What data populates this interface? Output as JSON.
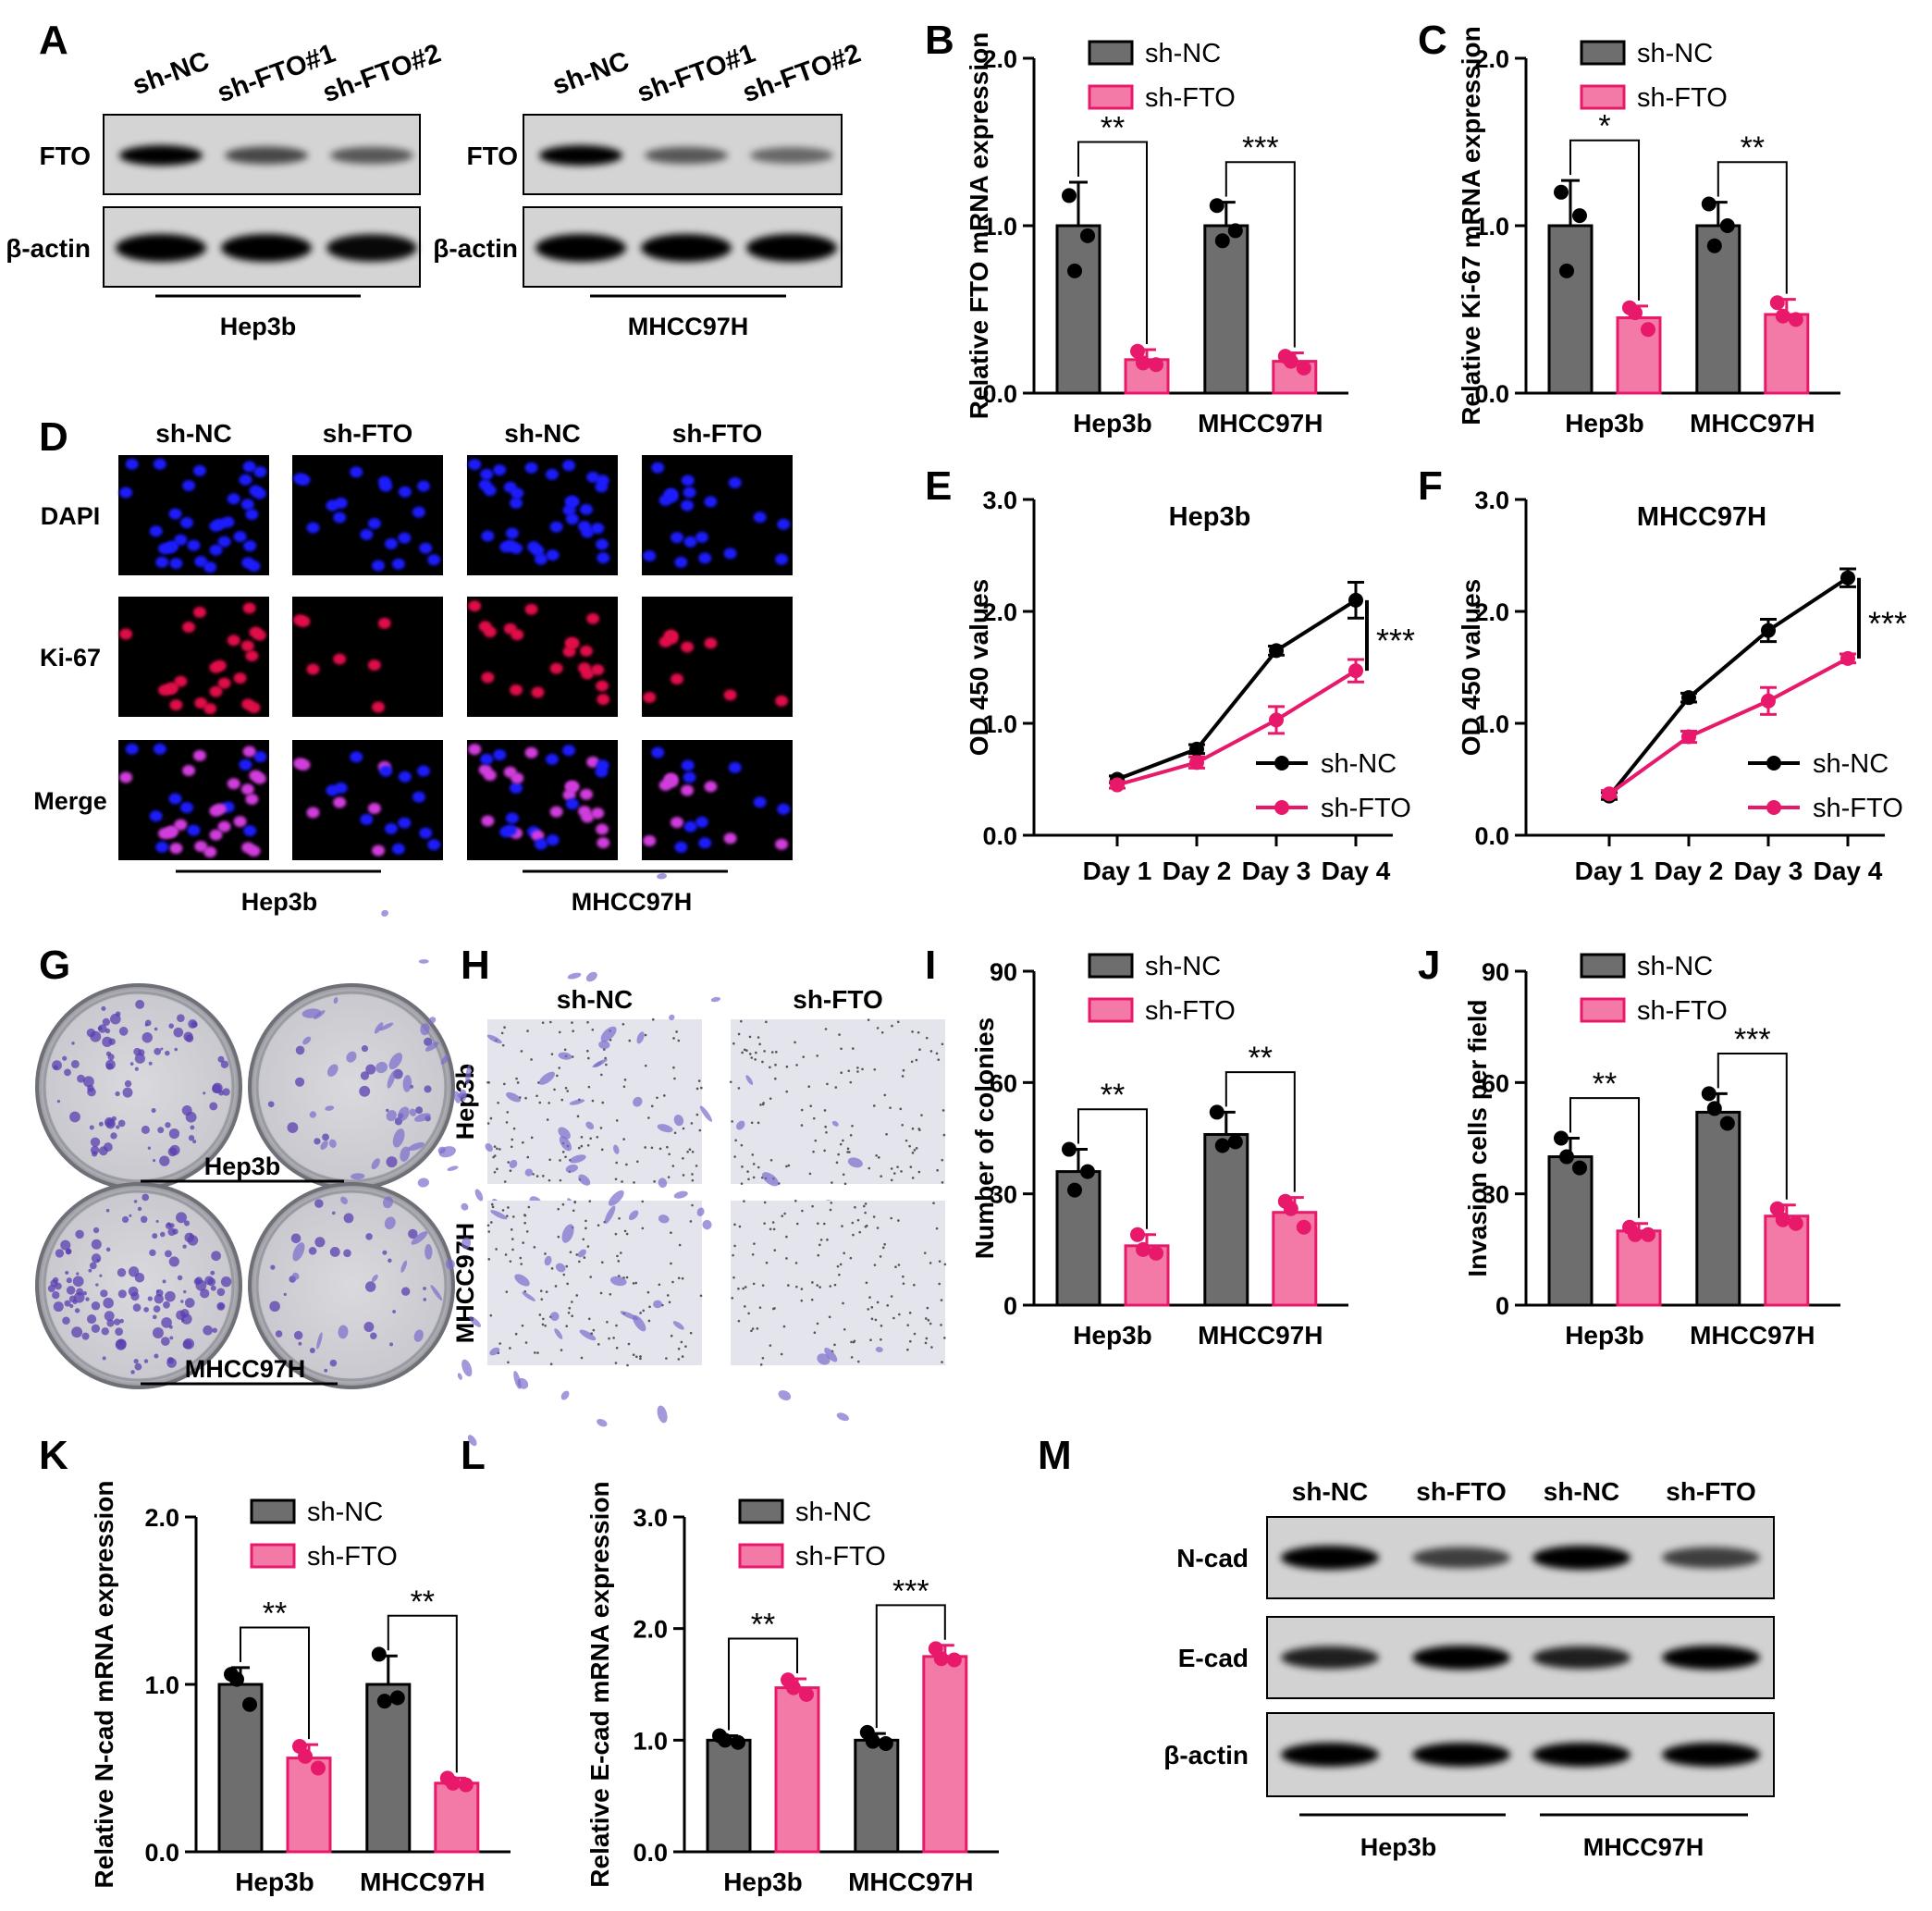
{
  "panel_letters": [
    "A",
    "B",
    "C",
    "D",
    "E",
    "F",
    "G",
    "H",
    "I",
    "J",
    "K",
    "L",
    "M"
  ],
  "colors": {
    "nc_fill": "#6e6e6e",
    "fto_fill": "#f37aa6",
    "fto_stroke": "#e8196b",
    "nc_line": "#000000",
    "fto_line": "#e8196b",
    "dapi_nuclei": "#1a1aff",
    "ki67_nuclei": "#e0104a",
    "merge_nuclei": "#d03cdc",
    "crystal_violet": "#5a3fb0"
  },
  "panelA": {
    "left": {
      "lanes": [
        "sh-NC",
        "sh-FTO#1",
        "sh-FTO#2"
      ],
      "rows": [
        "FTO",
        "β-actin"
      ],
      "cell": "Hep3b",
      "fto_intensity": [
        1.0,
        0.55,
        0.45
      ],
      "actin_intensity": [
        1.0,
        1.0,
        0.95
      ]
    },
    "right": {
      "lanes": [
        "sh-NC",
        "sh-FTO#1",
        "sh-FTO#2"
      ],
      "rows": [
        "FTO",
        "β-actin"
      ],
      "cell": "MHCC97H",
      "fto_intensity": [
        1.0,
        0.45,
        0.35
      ],
      "actin_intensity": [
        1.0,
        1.0,
        1.0
      ]
    }
  },
  "panelD": {
    "columns": [
      "sh-NC",
      "sh-FTO",
      "sh-NC",
      "sh-FTO"
    ],
    "rows": [
      "DAPI",
      "Ki-67",
      "Merge"
    ],
    "cells": [
      "Hep3b",
      "MHCC97H"
    ]
  },
  "panelG": {
    "cells": [
      "Hep3b",
      "MHCC97H"
    ]
  },
  "panelH": {
    "columns": [
      "sh-NC",
      "sh-FTO"
    ],
    "rows": [
      "Hep3b",
      "MHCC97H"
    ]
  },
  "panelM": {
    "lanes": [
      "sh-NC",
      "sh-FTO",
      "sh-NC",
      "sh-FTO"
    ],
    "rows": [
      "N-cad",
      "E-cad",
      "β-actin"
    ],
    "cells": [
      "Hep3b",
      "MHCC97H"
    ],
    "ncad_intensity": [
      1.0,
      0.6,
      1.0,
      0.6
    ],
    "ecad_intensity": [
      0.8,
      1.0,
      0.8,
      1.0
    ],
    "actin_intensity": [
      1.0,
      1.0,
      1.0,
      1.0
    ]
  },
  "chart_data": [
    {
      "panel": "B",
      "type": "bar",
      "ylabel": "Relative FTO mRNA expression",
      "categories": [
        "Hep3b",
        "MHCC97H"
      ],
      "ylim": [
        0,
        2.0
      ],
      "yticks": [
        "0.0",
        "1.0",
        "2.0"
      ],
      "legend_position": "top-right",
      "series": [
        {
          "name": "sh-NC",
          "values": [
            1.0,
            1.0
          ],
          "errors": [
            0.26,
            0.14
          ],
          "points": [
            [
              1.18,
              0.94,
              0.73
            ],
            [
              1.12,
              0.97,
              0.91
            ]
          ]
        },
        {
          "name": "sh-FTO",
          "values": [
            0.2,
            0.19
          ],
          "errors": [
            0.06,
            0.05
          ],
          "points": [
            [
              0.25,
              0.17,
              0.18
            ],
            [
              0.22,
              0.15,
              0.19
            ]
          ]
        }
      ],
      "significance": [
        "**",
        "***"
      ]
    },
    {
      "panel": "C",
      "type": "bar",
      "ylabel": "Relative Ki-67 mRNA expression",
      "categories": [
        "Hep3b",
        "MHCC97H"
      ],
      "ylim": [
        0,
        2.0
      ],
      "yticks": [
        "0.0",
        "1.0",
        "2.0"
      ],
      "legend_position": "top-right",
      "series": [
        {
          "name": "sh-NC",
          "values": [
            1.0,
            1.0
          ],
          "errors": [
            0.27,
            0.14
          ],
          "points": [
            [
              1.2,
              1.06,
              0.73
            ],
            [
              1.13,
              1.0,
              0.88
            ]
          ]
        },
        {
          "name": "sh-FTO",
          "values": [
            0.45,
            0.47
          ],
          "errors": [
            0.07,
            0.09
          ],
          "points": [
            [
              0.51,
              0.38,
              0.48
            ],
            [
              0.54,
              0.44,
              0.46
            ]
          ]
        }
      ],
      "significance": [
        "*",
        "**"
      ]
    },
    {
      "panel": "E",
      "type": "line",
      "title": "Hep3b",
      "ylabel": "OD 450 values",
      "x": [
        "Day 1",
        "Day 2",
        "Day 3",
        "Day 4"
      ],
      "ylim": [
        0,
        3.0
      ],
      "yticks": [
        "0.0",
        "1.0",
        "2.0",
        "3.0"
      ],
      "legend_position": "bottom-right",
      "series": [
        {
          "name": "sh-NC",
          "values": [
            0.5,
            0.77,
            1.65,
            2.1
          ],
          "errors": [
            0.03,
            0.04,
            0.04,
            0.16
          ]
        },
        {
          "name": "sh-FTO",
          "values": [
            0.45,
            0.65,
            1.03,
            1.47
          ],
          "errors": [
            0.03,
            0.05,
            0.12,
            0.1
          ]
        }
      ],
      "significance": "***"
    },
    {
      "panel": "F",
      "type": "line",
      "title": "MHCC97H",
      "ylabel": "OD 450 values",
      "x": [
        "Day 1",
        "Day 2",
        "Day 3",
        "Day 4"
      ],
      "ylim": [
        0,
        3.0
      ],
      "yticks": [
        "0.0",
        "1.0",
        "2.0",
        "3.0"
      ],
      "legend_position": "bottom-right",
      "series": [
        {
          "name": "sh-NC",
          "values": [
            0.35,
            1.23,
            1.83,
            2.3
          ],
          "errors": [
            0.03,
            0.04,
            0.1,
            0.08
          ]
        },
        {
          "name": "sh-FTO",
          "values": [
            0.37,
            0.88,
            1.2,
            1.58
          ],
          "errors": [
            0.03,
            0.05,
            0.12,
            0.04
          ]
        }
      ],
      "significance": "***"
    },
    {
      "panel": "I",
      "type": "bar",
      "ylabel": "Number of colonies",
      "categories": [
        "Hep3b",
        "MHCC97H"
      ],
      "ylim": [
        0,
        90
      ],
      "yticks": [
        "0",
        "30",
        "60",
        "90"
      ],
      "legend_position": "top-right",
      "series": [
        {
          "name": "sh-NC",
          "values": [
            36,
            46
          ],
          "errors": [
            6,
            6
          ],
          "points": [
            [
              42,
              36,
              31
            ],
            [
              52,
              44,
              43
            ]
          ]
        },
        {
          "name": "sh-FTO",
          "values": [
            16,
            25
          ],
          "errors": [
            3,
            4
          ],
          "points": [
            [
              19,
              14,
              15
            ],
            [
              28,
              21,
              26
            ]
          ]
        }
      ],
      "significance": [
        "**",
        "**"
      ]
    },
    {
      "panel": "J",
      "type": "bar",
      "ylabel": "Invasion cells per field",
      "categories": [
        "Hep3b",
        "MHCC97H"
      ],
      "ylim": [
        0,
        90
      ],
      "yticks": [
        "0",
        "30",
        "60",
        "90"
      ],
      "legend_position": "top-right",
      "series": [
        {
          "name": "sh-NC",
          "values": [
            40,
            52
          ],
          "errors": [
            5,
            5
          ],
          "points": [
            [
              45,
              37,
              40
            ],
            [
              57,
              49,
              53
            ]
          ]
        },
        {
          "name": "sh-FTO",
          "values": [
            20,
            24
          ],
          "errors": [
            2,
            3
          ],
          "points": [
            [
              21,
              19,
              19
            ],
            [
              26,
              22,
              23
            ]
          ]
        }
      ],
      "significance": [
        "**",
        "***"
      ]
    },
    {
      "panel": "K",
      "type": "bar",
      "ylabel": "Relative N-cad mRNA expression",
      "categories": [
        "Hep3b",
        "MHCC97H"
      ],
      "ylim": [
        0,
        2.0
      ],
      "yticks": [
        "0.0",
        "1.0",
        "2.0"
      ],
      "legend_position": "top-right",
      "series": [
        {
          "name": "sh-NC",
          "values": [
            1.0,
            1.0
          ],
          "errors": [
            0.1,
            0.17
          ],
          "points": [
            [
              1.06,
              0.88,
              1.03
            ],
            [
              1.18,
              0.92,
              0.9
            ]
          ]
        },
        {
          "name": "sh-FTO",
          "values": [
            0.56,
            0.41
          ],
          "errors": [
            0.08,
            0.03
          ],
          "points": [
            [
              0.63,
              0.5,
              0.57
            ],
            [
              0.44,
              0.4,
              0.41
            ]
          ]
        }
      ],
      "significance": [
        "**",
        "**"
      ]
    },
    {
      "panel": "L",
      "type": "bar",
      "ylabel": "Relative E-cad mRNA expression",
      "categories": [
        "Hep3b",
        "MHCC97H"
      ],
      "ylim": [
        0,
        3.0
      ],
      "yticks": [
        "0.0",
        "1.0",
        "2.0",
        "3.0"
      ],
      "legend_position": "top-right",
      "series": [
        {
          "name": "sh-NC",
          "values": [
            1.0,
            1.0
          ],
          "errors": [
            0.04,
            0.06
          ],
          "points": [
            [
              1.04,
              0.98,
              1.0
            ],
            [
              1.07,
              0.97,
              0.99
            ]
          ]
        },
        {
          "name": "sh-FTO",
          "values": [
            1.47,
            1.75
          ],
          "errors": [
            0.08,
            0.1
          ],
          "points": [
            [
              1.54,
              1.41,
              1.47
            ],
            [
              1.82,
              1.72,
              1.73
            ]
          ]
        }
      ],
      "significance": [
        "**",
        "***"
      ]
    }
  ]
}
